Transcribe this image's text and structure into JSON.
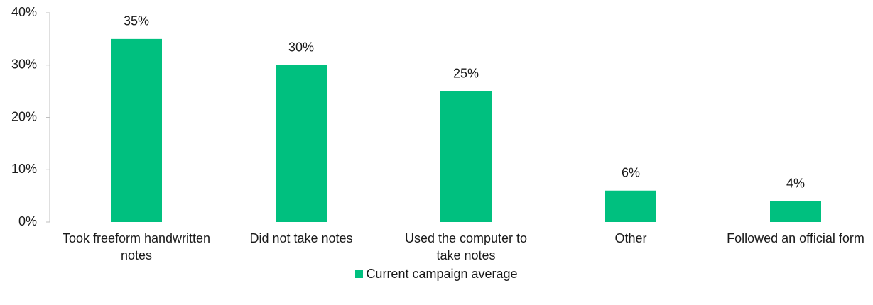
{
  "chart_data": {
    "type": "bar",
    "categories": [
      "Took freeform handwritten notes",
      "Did not take notes",
      "Used the computer to take notes",
      "Other",
      "Followed an official form"
    ],
    "series": [
      {
        "name": "Current campaign average",
        "color": "#00c07f",
        "values": [
          35,
          30,
          25,
          6,
          4
        ],
        "value_labels": [
          "35%",
          "30%",
          "25%",
          "6%",
          "4%"
        ]
      }
    ],
    "ylim": [
      0,
      40
    ],
    "yticks": [
      {
        "value": 0,
        "label": "0%"
      },
      {
        "value": 10,
        "label": "10%"
      },
      {
        "value": 20,
        "label": "20%"
      },
      {
        "value": 30,
        "label": "30%"
      },
      {
        "value": 40,
        "label": "40%"
      }
    ],
    "grid": false,
    "legend": "bottom"
  }
}
